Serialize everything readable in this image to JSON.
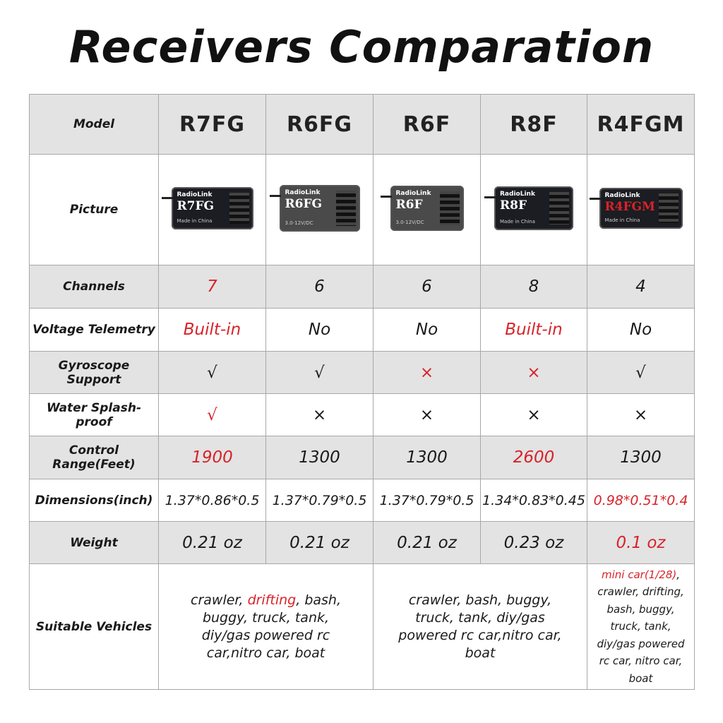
{
  "title": "Receivers Comparation",
  "colors": {
    "highlight": "#d8232a",
    "row_gray": "#e3e3e3",
    "border": "#a8a8a8"
  },
  "header": {
    "label": "Model",
    "models": [
      "R7FG",
      "R6FG",
      "R6F",
      "R8F",
      "R4FGM"
    ]
  },
  "picture_row": {
    "label": "Picture",
    "receivers": [
      {
        "brand": "RadioLink",
        "model": "R7FG",
        "note": "Made in China"
      },
      {
        "brand": "RadioLink",
        "model": "R6FG",
        "note": "3.0-12V/DC"
      },
      {
        "brand": "RadioLink",
        "model": "R6F",
        "note": "3.0-12V/DC"
      },
      {
        "brand": "RadioLink",
        "model": "R8F",
        "note": "Made in China"
      },
      {
        "brand": "RadioLink",
        "model": "R4FGM",
        "note": "Made in China"
      }
    ]
  },
  "rows": [
    {
      "label": "Channels",
      "gray": true,
      "cells": [
        {
          "text": "7",
          "red": true
        },
        {
          "text": "6"
        },
        {
          "text": "6"
        },
        {
          "text": "8"
        },
        {
          "text": "4"
        }
      ]
    },
    {
      "label": "Voltage Telemetry",
      "gray": false,
      "cells": [
        {
          "text": "Built-in",
          "red": true
        },
        {
          "text": "No"
        },
        {
          "text": "No"
        },
        {
          "text": "Built-in",
          "red": true
        },
        {
          "text": "No"
        }
      ]
    },
    {
      "label": "Gyroscope Support",
      "gray": true,
      "cells": [
        {
          "text": "√"
        },
        {
          "text": "√"
        },
        {
          "text": "×",
          "red": true
        },
        {
          "text": "×",
          "red": true
        },
        {
          "text": "√"
        }
      ]
    },
    {
      "label": "Water Splash-proof",
      "gray": false,
      "cells": [
        {
          "text": "√",
          "red": true
        },
        {
          "text": "×"
        },
        {
          "text": "×"
        },
        {
          "text": "×"
        },
        {
          "text": "×"
        }
      ]
    },
    {
      "label": "Control Range(Feet)",
      "gray": true,
      "cells": [
        {
          "text": "1900",
          "red": true
        },
        {
          "text": "1300"
        },
        {
          "text": "1300"
        },
        {
          "text": "2600",
          "red": true
        },
        {
          "text": "1300"
        }
      ]
    },
    {
      "label": "Dimensions(inch)",
      "gray": false,
      "small": true,
      "cells": [
        {
          "text": "1.37*0.86*0.5"
        },
        {
          "text": "1.37*0.79*0.5"
        },
        {
          "text": "1.37*0.79*0.5"
        },
        {
          "text": "1.34*0.83*0.45"
        },
        {
          "text": "0.98*0.51*0.4",
          "red": true
        }
      ]
    },
    {
      "label": "Weight",
      "gray": true,
      "cells": [
        {
          "text": "0.21 oz"
        },
        {
          "text": "0.21 oz"
        },
        {
          "text": "0.21 oz"
        },
        {
          "text": "0.23 oz"
        },
        {
          "text": "0.1 oz",
          "red": true
        }
      ]
    }
  ],
  "vehicles": {
    "label": "Suitable Vehicles",
    "groups": [
      {
        "span": 2,
        "segments": [
          {
            "text": "crawler, "
          },
          {
            "text": "drifting",
            "red": true
          },
          {
            "text": ", bash, buggy, truck, tank, diy/gas powered rc car,nitro car, boat"
          }
        ]
      },
      {
        "span": 2,
        "segments": [
          {
            "text": "crawler, bash, buggy, truck, tank, diy/gas powered rc car,nitro car, boat"
          }
        ]
      },
      {
        "span": 1,
        "segments": [
          {
            "text": "mini car(1/28)",
            "red": true
          },
          {
            "text": ", crawler, drifting, bash, buggy, truck, tank, diy/gas powered rc car, nitro car, boat"
          }
        ]
      }
    ]
  }
}
